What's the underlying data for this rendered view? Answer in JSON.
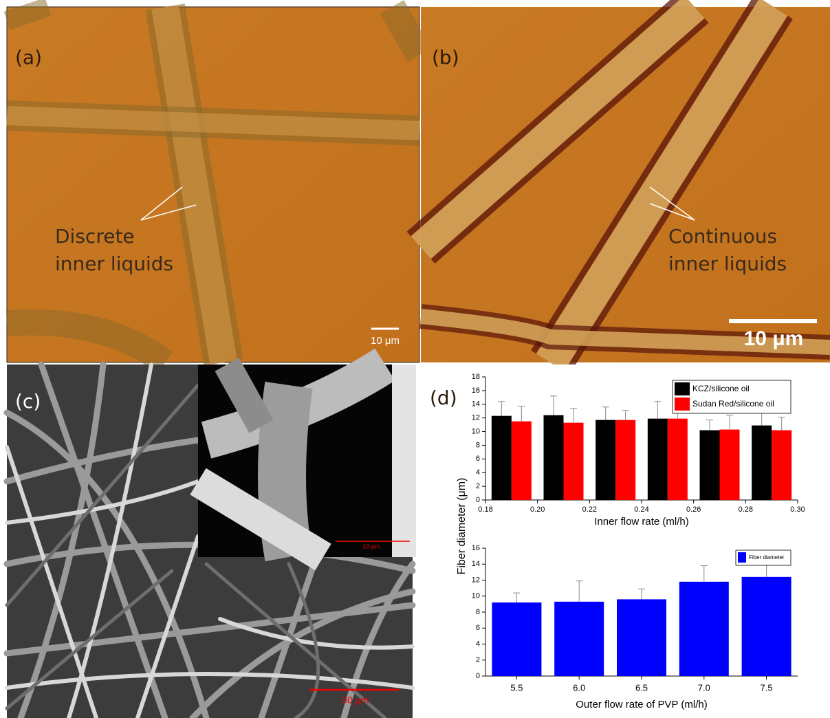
{
  "panels": [
    {
      "label": "(a)",
      "annotation": [
        "Discrete",
        "inner liquids"
      ],
      "scale_bar": "10 μm"
    },
    {
      "label": "(b)",
      "annotation": [
        "Continuous",
        "inner liquids"
      ],
      "scale_bar": "10 μm"
    },
    {
      "label": "(c)",
      "inset_scale_bar": "10 μm",
      "scale_bar": "50 μm"
    },
    {
      "label": "(d)"
    }
  ],
  "chart_data": [
    {
      "type": "bar",
      "x": [
        0.19,
        0.21,
        0.23,
        0.25,
        0.27,
        0.29
      ],
      "series": [
        {
          "name": "KCZ/silicone oil",
          "color": "#000000",
          "values": [
            12.3,
            12.4,
            11.7,
            11.9,
            10.2,
            10.9
          ],
          "errors": [
            2.1,
            2.8,
            1.9,
            2.5,
            1.5,
            2.2
          ]
        },
        {
          "name": "Sudan Red/silicone oil",
          "color": "#ff0000",
          "values": [
            11.5,
            11.3,
            11.7,
            11.9,
            10.3,
            10.2
          ],
          "errors": [
            2.2,
            2.1,
            1.4,
            2.0,
            2.1,
            1.9
          ]
        }
      ],
      "xlim": [
        0.18,
        0.3
      ],
      "xticks": [
        0.18,
        {
          "value": 0.2,
          "label": "0.20"
        },
        0.22,
        0.24,
        0.26,
        0.28,
        {
          "value": 0.3,
          "label": "0.30"
        }
      ],
      "ylim": [
        0,
        18
      ],
      "yticks": [
        0,
        2,
        4,
        6,
        8,
        10,
        12,
        14,
        16,
        18
      ],
      "xlabel": "Inner flow rate (ml/h)",
      "ylabel": "Fiber diameter (μm)",
      "legend": "upper right"
    },
    {
      "type": "bar",
      "categories": [
        "5.5",
        "6.0",
        "6.5",
        "7.0",
        "7.5"
      ],
      "series": [
        {
          "name": "Fiber diameter",
          "color": "#0000ff",
          "values": [
            9.2,
            9.3,
            9.6,
            11.8,
            12.4
          ],
          "errors": [
            1.2,
            2.6,
            1.3,
            2.0,
            1.9
          ]
        }
      ],
      "ylim": [
        0,
        16
      ],
      "yticks": [
        0,
        2,
        4,
        6,
        8,
        10,
        12,
        14,
        16
      ],
      "xlabel": "Outer flow rate of PVP (ml/h)",
      "legend": "upper right"
    }
  ]
}
